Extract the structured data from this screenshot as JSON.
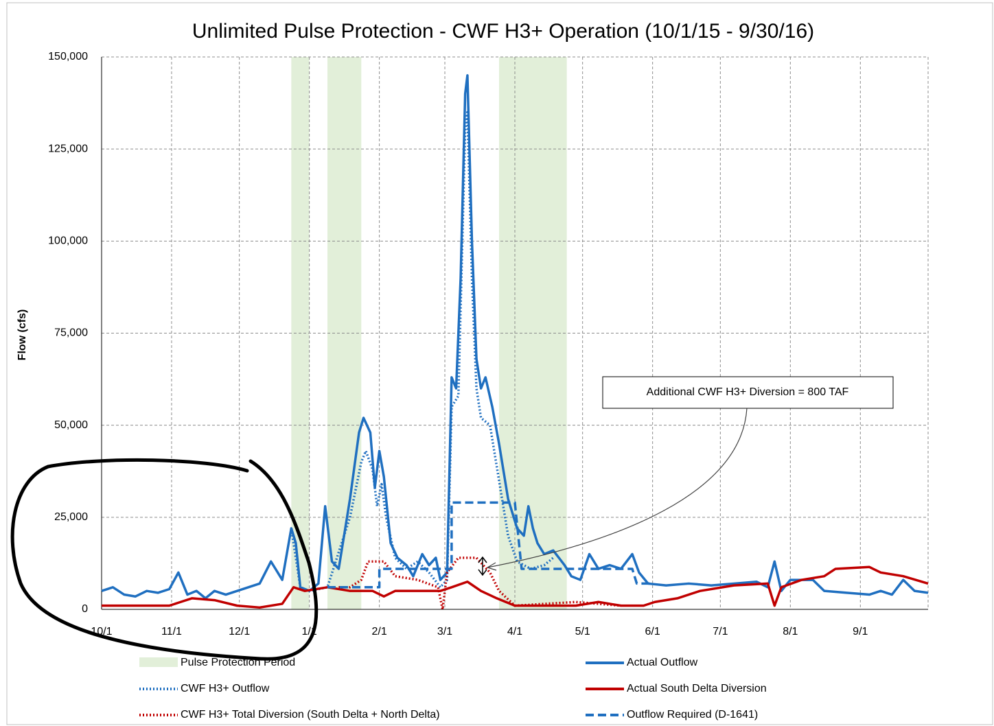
{
  "chart_data": {
    "type": "line",
    "title": "Unlimited Pulse Protection - CWF H3+ Operation (10/1/15 - 9/30/16)",
    "y_label": "Flow (cfs)",
    "xlim": [
      0,
      366
    ],
    "xticks": [
      {
        "value": 0,
        "label": "10/1"
      },
      {
        "value": 31,
        "label": "11/1"
      },
      {
        "value": 61,
        "label": "12/1"
      },
      {
        "value": 92,
        "label": "1/1"
      },
      {
        "value": 123,
        "label": "2/1"
      },
      {
        "value": 152,
        "label": "3/1"
      },
      {
        "value": 183,
        "label": "4/1"
      },
      {
        "value": 213,
        "label": "5/1"
      },
      {
        "value": 244,
        "label": "6/1"
      },
      {
        "value": 274,
        "label": "7/1"
      },
      {
        "value": 305,
        "label": "8/1"
      },
      {
        "value": 336,
        "label": "9/1"
      }
    ],
    "ylim": [
      0,
      150000
    ],
    "yticks": [
      0,
      {
        "value": 25000,
        "label": "25,000"
      },
      {
        "value": 50000,
        "label": "50,000"
      },
      {
        "value": 75000,
        "label": "75,000"
      },
      {
        "value": 100000,
        "label": "100,000"
      },
      {
        "value": 125000,
        "label": "125,000"
      },
      {
        "value": 150000,
        "label": "150,000"
      }
    ],
    "grid": true,
    "bands": {
      "name": "Pulse Protection Period",
      "color": "#e2efd9",
      "ranges": [
        [
          84,
          92
        ],
        [
          100,
          115
        ],
        [
          176,
          206
        ]
      ]
    },
    "series": [
      {
        "name": "Actual Outflow",
        "color": "#1f6fc0",
        "style": "solid",
        "x": [
          0,
          5,
          10,
          15,
          20,
          25,
          30,
          34,
          38,
          42,
          46,
          50,
          55,
          60,
          65,
          70,
          75,
          80,
          84,
          86,
          88,
          92,
          96,
          99,
          102,
          105,
          110,
          114,
          116,
          119,
          121,
          123,
          125,
          128,
          131,
          135,
          138,
          142,
          145,
          148,
          150,
          153,
          155,
          157,
          159,
          161,
          162,
          164,
          166,
          168,
          170,
          173,
          176,
          180,
          184,
          187,
          189,
          191,
          193,
          196,
          200,
          205,
          208,
          212,
          216,
          220,
          225,
          230,
          235,
          238,
          242,
          250,
          260,
          270,
          280,
          290,
          295,
          298,
          301,
          305,
          315,
          320,
          330,
          340,
          345,
          350,
          355,
          360,
          366
        ],
        "values": [
          5000,
          6000,
          4000,
          3500,
          5000,
          4500,
          5500,
          10000,
          4000,
          5000,
          3000,
          5000,
          4000,
          5000,
          6000,
          7000,
          13000,
          8000,
          22000,
          18000,
          6000,
          5000,
          7000,
          28000,
          13000,
          11000,
          30000,
          48000,
          52000,
          48000,
          33000,
          43000,
          36000,
          18000,
          14000,
          12000,
          9000,
          15000,
          12000,
          14000,
          8000,
          10000,
          63000,
          60000,
          90000,
          140000,
          145000,
          100000,
          68000,
          60000,
          63000,
          55000,
          45000,
          30000,
          22000,
          20000,
          28000,
          22000,
          18000,
          15000,
          16000,
          12000,
          9000,
          8000,
          15000,
          11000,
          12000,
          11000,
          15000,
          10000,
          7000,
          6500,
          7000,
          6500,
          7000,
          7500,
          6000,
          13000,
          5000,
          8000,
          8000,
          5000,
          4500,
          4000,
          5000,
          4000,
          8000,
          5000,
          4500
        ]
      },
      {
        "name": "CWF H3+ Outflow",
        "color": "#1f6fc0",
        "style": "dotted",
        "x": [
          84,
          88,
          92,
          100,
          110,
          115,
          117,
          120,
          122,
          124,
          126,
          130,
          135,
          140,
          145,
          150,
          153,
          155,
          158,
          161,
          162,
          164,
          166,
          168,
          172,
          176,
          180,
          184,
          190,
          196,
          200
        ],
        "values": [
          22000,
          6000,
          5000,
          6000,
          25000,
          40000,
          43000,
          38000,
          28000,
          34000,
          25000,
          14000,
          11000,
          13000,
          10000,
          6000,
          8000,
          55000,
          58000,
          130000,
          135000,
          90000,
          60000,
          52000,
          50000,
          35000,
          20000,
          13000,
          11000,
          12000,
          14000
        ]
      },
      {
        "name": "Actual South Delta Diversion",
        "color": "#c00000",
        "style": "solid",
        "x": [
          0,
          30,
          35,
          40,
          50,
          60,
          70,
          80,
          85,
          90,
          100,
          110,
          120,
          125,
          130,
          150,
          155,
          162,
          168,
          175,
          183,
          210,
          220,
          230,
          240,
          245,
          255,
          265,
          280,
          295,
          298,
          301,
          310,
          320,
          325,
          340,
          345,
          355,
          366
        ],
        "values": [
          1000,
          1000,
          2000,
          3000,
          2500,
          1000,
          500,
          1500,
          6000,
          5000,
          6000,
          5000,
          5000,
          3500,
          5000,
          5000,
          6000,
          7500,
          5000,
          3000,
          1000,
          1000,
          2000,
          1000,
          1000,
          2000,
          3000,
          5000,
          6500,
          7000,
          1000,
          6000,
          8000,
          9000,
          11000,
          11500,
          10000,
          9000,
          7000
        ]
      },
      {
        "name": "CWF H3+ Total Diversion (South Delta + North Delta)",
        "color": "#c00000",
        "style": "dotted",
        "x": [
          105,
          110,
          115,
          118,
          125,
          130,
          140,
          149,
          151,
          153,
          158,
          166,
          172,
          176,
          183,
          210,
          220,
          230
        ],
        "values": [
          6000,
          6000,
          8000,
          13000,
          13000,
          9000,
          8000,
          6000,
          0,
          10000,
          14000,
          14000,
          10000,
          5000,
          1000,
          2000,
          1500,
          1000
        ]
      },
      {
        "name": "Outflow Required (D-1641)",
        "color": "#1f6fc0",
        "style": "dashed",
        "x": [
          100,
          123,
          123,
          150,
          155,
          155,
          183,
          186,
          186,
          235,
          237,
          244
        ],
        "values": [
          6000,
          6000,
          11000,
          11000,
          11000,
          29000,
          29000,
          11000,
          11000,
          11000,
          7000,
          7000
        ]
      }
    ],
    "annotation": "Additional CWF H3+ Diversion =  800  TAF"
  }
}
